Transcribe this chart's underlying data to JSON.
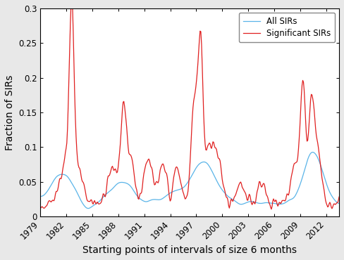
{
  "xlabel": "Starting points of intervals of size 6 months",
  "ylabel": "Fraction of SIRs",
  "xlim": [
    1979,
    2013.5
  ],
  "ylim": [
    0,
    0.3
  ],
  "yticks": [
    0,
    0.05,
    0.1,
    0.15,
    0.2,
    0.25,
    0.3
  ],
  "xticks": [
    1979,
    1982,
    1985,
    1988,
    1991,
    1994,
    1997,
    2000,
    2003,
    2006,
    2009,
    2012
  ],
  "blue_color": "#5ab4e8",
  "red_color": "#e02020",
  "plot_bg": "#ffffff",
  "outer_bg": "#e8e8e8",
  "legend_labels": [
    "All SIRs",
    "Significant SIRs"
  ]
}
